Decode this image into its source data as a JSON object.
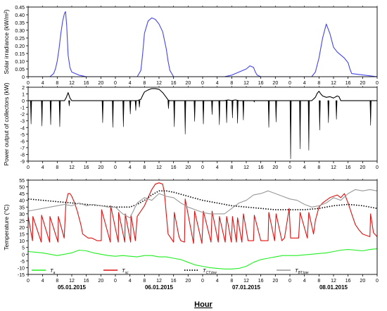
{
  "chart_data": [
    {
      "type": "line",
      "ylabel": "Solar irradiance (kW/m²)",
      "ylim": [
        0,
        0.45
      ],
      "yticks": [
        "0",
        "0.05",
        "0.10",
        "0.15",
        "0.20",
        "0.25",
        "0.30",
        "0.35",
        "0.40",
        "0.45"
      ],
      "xlim": [
        0,
        96
      ],
      "xtick_labels": [
        "0",
        "4",
        "8",
        "12",
        "16",
        "20",
        "0",
        "4",
        "8",
        "12",
        "16",
        "20",
        "0",
        "4",
        "8",
        "12",
        "16",
        "20",
        "0",
        "4",
        "8",
        "12",
        "16",
        "20",
        "0"
      ],
      "series": [
        {
          "color": "#4444ee",
          "x": [
            0,
            6,
            7,
            7.5,
            8,
            8.5,
            9,
            9.5,
            10,
            10.3,
            10.6,
            11,
            11.5,
            12,
            13,
            14,
            15,
            16,
            24,
            30,
            31,
            31.5,
            32,
            33,
            34,
            35,
            36,
            37,
            38,
            38.5,
            39,
            40,
            48,
            54,
            56,
            58,
            60,
            61,
            62,
            62.5,
            63,
            64,
            72,
            78,
            79,
            80,
            81,
            82,
            83,
            84,
            85,
            86,
            87,
            88,
            88.5,
            89,
            96
          ],
          "y": [
            0,
            0,
            0.02,
            0.05,
            0.1,
            0.18,
            0.28,
            0.36,
            0.41,
            0.42,
            0.33,
            0.14,
            0.06,
            0.03,
            0.02,
            0.01,
            0.005,
            0,
            0,
            0,
            0.04,
            0.15,
            0.28,
            0.36,
            0.38,
            0.37,
            0.34,
            0.29,
            0.18,
            0.1,
            0.04,
            0,
            0,
            0,
            0.01,
            0.03,
            0.05,
            0.07,
            0.06,
            0.03,
            0.01,
            0,
            0,
            0,
            0.03,
            0.12,
            0.25,
            0.34,
            0.28,
            0.19,
            0.16,
            0.14,
            0.12,
            0.09,
            0.05,
            0.02,
            0
          ]
        }
      ]
    },
    {
      "type": "line",
      "ylabel": "Power output of collectors (kW)",
      "ylim": [
        -9,
        2
      ],
      "yticks": [
        "2",
        "1",
        "0",
        "-1",
        "-2",
        "-3",
        "-4",
        "-5",
        "-6",
        "-7",
        "-8",
        "-9"
      ],
      "xlim": [
        0,
        96
      ],
      "xtick_labels": [
        "0",
        "4",
        "8",
        "12",
        "16",
        "20",
        "0",
        "4",
        "8",
        "12",
        "16",
        "20",
        "0",
        "4",
        "8",
        "12",
        "16",
        "20",
        "0",
        "4",
        "8",
        "12",
        "16",
        "20",
        "0"
      ],
      "baseline": 0,
      "series": [
        {
          "color": "#000000",
          "x": [
            0,
            10,
            10.5,
            11,
            11.5,
            12,
            24,
            30,
            31,
            31.5,
            32,
            33,
            34,
            35,
            36,
            37,
            38,
            38.5,
            39,
            40,
            48,
            54,
            55,
            56,
            57,
            58,
            60,
            72,
            78,
            79,
            79.5,
            80,
            80.5,
            81,
            82,
            83,
            84,
            85,
            85.5,
            86,
            96
          ],
          "y": [
            0,
            0,
            0.5,
            1.2,
            0.4,
            0,
            0,
            0,
            0.2,
            0.8,
            1.3,
            1.6,
            1.8,
            1.8,
            1.7,
            1.2,
            0.5,
            0.1,
            0,
            0,
            0,
            0,
            0.1,
            0,
            0.1,
            0,
            0,
            0,
            0,
            0.5,
            1.1,
            1.4,
            1.0,
            0.7,
            0.5,
            0.6,
            0.4,
            0.7,
            0.6,
            0,
            0
          ],
          "spikes": [
            {
              "x": 0.8,
              "y": -3.5
            },
            {
              "x": 3.8,
              "y": -3.8
            },
            {
              "x": 6.2,
              "y": -3.6
            },
            {
              "x": 8.7,
              "y": -3.9
            },
            {
              "x": 11.3,
              "y": -0.8
            },
            {
              "x": 20.5,
              "y": -3.3
            },
            {
              "x": 23.3,
              "y": -4.0
            },
            {
              "x": 26.2,
              "y": -3.9
            },
            {
              "x": 28.1,
              "y": -2.0
            },
            {
              "x": 29.6,
              "y": -1.5
            },
            {
              "x": 30.6,
              "y": -1.0
            },
            {
              "x": 38.6,
              "y": -1.2
            },
            {
              "x": 40.2,
              "y": -3.9
            },
            {
              "x": 43.2,
              "y": -5.0
            },
            {
              "x": 45.8,
              "y": -3.1
            },
            {
              "x": 48.2,
              "y": -3.5
            },
            {
              "x": 50.6,
              "y": -2.1
            },
            {
              "x": 52.6,
              "y": -3.6
            },
            {
              "x": 54.6,
              "y": -3.3
            },
            {
              "x": 56.2,
              "y": -2.6
            },
            {
              "x": 57.6,
              "y": -3.4
            },
            {
              "x": 59.2,
              "y": -2.9
            },
            {
              "x": 62.2,
              "y": -0.2
            },
            {
              "x": 66.2,
              "y": -4.0
            },
            {
              "x": 68.2,
              "y": -3.2
            },
            {
              "x": 72.2,
              "y": -8.7
            },
            {
              "x": 74.8,
              "y": -7.2
            },
            {
              "x": 77.2,
              "y": -7.4
            },
            {
              "x": 80.2,
              "y": -4.4
            },
            {
              "x": 82.6,
              "y": -3.3
            },
            {
              "x": 84.8,
              "y": -2.8
            },
            {
              "x": 94.2,
              "y": -3.7
            }
          ]
        }
      ]
    },
    {
      "type": "line",
      "ylabel": "Temperature  (°C)",
      "ylim": [
        -15,
        55
      ],
      "yticks": [
        "55",
        "50",
        "45",
        "40",
        "35",
        "30",
        "25",
        "20",
        "15",
        "10",
        "5",
        "0",
        "-5",
        "-10",
        "-15"
      ],
      "xlim": [
        0,
        96
      ],
      "xtick_labels": [
        "0",
        "4",
        "8",
        "12",
        "16",
        "20",
        "0",
        "4",
        "8",
        "12",
        "16",
        "20",
        "0",
        "4",
        "8",
        "12",
        "16",
        "20",
        "0",
        "4",
        "8",
        "12",
        "16",
        "20",
        "0"
      ],
      "date_labels": [
        "05.01.2015",
        "06.01.2015",
        "07.01.2015",
        "08.01.2015"
      ],
      "xlabel": "Hour",
      "legend": [
        "T",
        "T",
        "T",
        "T"
      ],
      "legend_subscripts": [
        "a",
        "sc",
        "CT,low",
        "BT,low"
      ],
      "legend_position": "bottom",
      "series": [
        {
          "color": "#22ee22",
          "style": "solid",
          "x": [
            0,
            2,
            4,
            6,
            8,
            10,
            12,
            14,
            16,
            18,
            20,
            22,
            24,
            26,
            28,
            30,
            32,
            34,
            36,
            38,
            40,
            42,
            44,
            46,
            48,
            50,
            52,
            54,
            56,
            58,
            60,
            62,
            64,
            66,
            68,
            70,
            72,
            74,
            76,
            78,
            80,
            82,
            84,
            86,
            88,
            90,
            92,
            94,
            96
          ],
          "y": [
            2,
            1.5,
            1,
            0,
            -1,
            0,
            1,
            3,
            2.5,
            1,
            0,
            -1,
            -1.5,
            -1,
            -1.5,
            -2,
            -1,
            -1,
            -2,
            -2,
            -3,
            -4,
            -6,
            -8,
            -9,
            -10,
            -10.5,
            -11,
            -11,
            -10.5,
            -9,
            -6,
            -4,
            -3,
            -2,
            -1,
            -1,
            -1,
            -0.5,
            0,
            0.5,
            1,
            2,
            3,
            3.5,
            3,
            2.5,
            3.5,
            4
          ]
        },
        {
          "color": "#dd1111",
          "style": "solid",
          "x": [
            0,
            1.2,
            1.3,
            3.6,
            3.7,
            5.9,
            6.0,
            8.2,
            8.3,
            9.9,
            10.4,
            11,
            11.5,
            12,
            12.8,
            13.5,
            14.5,
            15,
            16.5,
            17.5,
            19,
            20.1,
            20.2,
            22.6,
            22.7,
            24.8,
            24.9,
            26.6,
            26.7,
            28.2,
            28.3,
            29.5,
            30,
            31,
            32,
            33,
            34,
            35,
            36,
            37,
            37.5,
            38,
            38.5,
            40,
            40.2,
            41.5,
            42,
            43,
            43.2,
            45.5,
            45.8,
            47.8,
            48.2,
            50.3,
            50.6,
            52.3,
            52.6,
            54.2,
            54.6,
            55.9,
            56.2,
            57.3,
            57.6,
            58.8,
            59.2,
            60.5,
            62,
            62.2,
            64,
            66,
            66.2,
            67.8,
            68.2,
            69.8,
            70.5,
            71.8,
            72.2,
            74.4,
            74.8,
            76.8,
            77.2,
            78.5,
            79,
            80,
            81,
            82,
            83,
            84,
            85,
            86,
            87,
            88,
            89,
            90,
            91,
            92,
            93,
            94,
            94.2,
            95,
            96
          ],
          "y": [
            28,
            10,
            28,
            9,
            29,
            9,
            28,
            9,
            28,
            12,
            38,
            45,
            45,
            43,
            38,
            32,
            22,
            15,
            12,
            12,
            10,
            10,
            33,
            9,
            36,
            9,
            31,
            9,
            30,
            9,
            29,
            10,
            28,
            32,
            36,
            42,
            48,
            52,
            53,
            52,
            45,
            30,
            15,
            9,
            31,
            13,
            10,
            9,
            41,
            8,
            32,
            8,
            32,
            9,
            32,
            9,
            28,
            9,
            28,
            9,
            28,
            9,
            27,
            9,
            30,
            10,
            10,
            29,
            10,
            10,
            31,
            10,
            30,
            10,
            12,
            34,
            12,
            12,
            31,
            12,
            31,
            15,
            25,
            35,
            38,
            40,
            42,
            43,
            44,
            42,
            45,
            38,
            30,
            22,
            18,
            15,
            14,
            13,
            30,
            16,
            13
          ]
        },
        {
          "color": "#000000",
          "style": "dotted",
          "x": [
            0,
            4,
            8,
            12,
            16,
            20,
            24,
            28,
            30,
            32,
            34,
            36,
            38,
            40,
            44,
            48,
            52,
            56,
            60,
            64,
            68,
            72,
            76,
            80,
            84,
            88,
            92,
            96
          ],
          "y": [
            41,
            40,
            39,
            38,
            37,
            36,
            35,
            35,
            37,
            40,
            44,
            47,
            47,
            46,
            43,
            40,
            38,
            36,
            35,
            34,
            33,
            33,
            33,
            34,
            36,
            37,
            36,
            34
          ]
        },
        {
          "color": "#999999",
          "style": "solid",
          "x": [
            0,
            4,
            8,
            10,
            12,
            14,
            16,
            18,
            20,
            22,
            24,
            26,
            28,
            30,
            32,
            34,
            36,
            38,
            40,
            42,
            44,
            46,
            48,
            50,
            52,
            54,
            56,
            58,
            60,
            62,
            64,
            66,
            68,
            70,
            72,
            74,
            76,
            78,
            80,
            82,
            84,
            86,
            88,
            90,
            92,
            94,
            96
          ],
          "y": [
            32,
            34,
            36,
            37,
            36,
            38,
            36,
            37,
            36,
            35,
            35,
            30,
            27,
            38,
            42,
            40,
            45,
            43,
            42,
            38,
            35,
            33,
            31,
            30,
            30,
            30,
            34,
            38,
            40,
            44,
            45,
            47,
            45,
            43,
            41,
            40,
            37,
            35,
            36,
            38,
            42,
            40,
            45,
            48,
            47,
            48,
            47
          ]
        }
      ]
    }
  ]
}
